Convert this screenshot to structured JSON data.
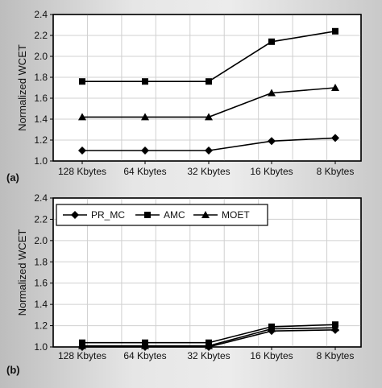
{
  "chart_data": [
    {
      "panel": "(a)",
      "type": "line",
      "ylabel": "Normalized WCET",
      "xlabel": "",
      "categories": [
        "128 Kbytes",
        "64 Kbytes",
        "32 Kbytes",
        "16 Kbytes",
        "8 Kbytes"
      ],
      "ylim": [
        1.0,
        2.4
      ],
      "yticks": [
        "1.0",
        "1.2",
        "1.4",
        "1.6",
        "1.8",
        "2.0",
        "2.2",
        "2.4"
      ],
      "grid": true,
      "series": [
        {
          "name": "PR_MC",
          "marker": "diamond",
          "values": [
            1.1,
            1.1,
            1.1,
            1.19,
            1.22
          ]
        },
        {
          "name": "AMC",
          "marker": "square",
          "values": [
            1.76,
            1.76,
            1.76,
            2.14,
            2.24
          ]
        },
        {
          "name": "MOET",
          "marker": "triangle",
          "values": [
            1.42,
            1.42,
            1.42,
            1.65,
            1.7
          ]
        }
      ]
    },
    {
      "panel": "(b)",
      "type": "line",
      "ylabel": "Normalized WCET",
      "xlabel": "",
      "categories": [
        "128 Kbytes",
        "64 Kbytes",
        "32 Kbytes",
        "16 Kbytes",
        "8 Kbytes"
      ],
      "ylim": [
        1.0,
        2.4
      ],
      "yticks": [
        "1.0",
        "1.2",
        "1.4",
        "1.6",
        "1.8",
        "2.0",
        "2.2",
        "2.4"
      ],
      "grid": true,
      "legend": "top-left",
      "series": [
        {
          "name": "PR_MC",
          "marker": "diamond",
          "values": [
            1.0,
            1.0,
            1.0,
            1.15,
            1.16
          ]
        },
        {
          "name": "AMC",
          "marker": "square",
          "values": [
            1.04,
            1.04,
            1.04,
            1.19,
            1.21
          ]
        },
        {
          "name": "MOET",
          "marker": "triangle",
          "values": [
            1.01,
            1.01,
            1.01,
            1.17,
            1.18
          ]
        }
      ]
    }
  ]
}
